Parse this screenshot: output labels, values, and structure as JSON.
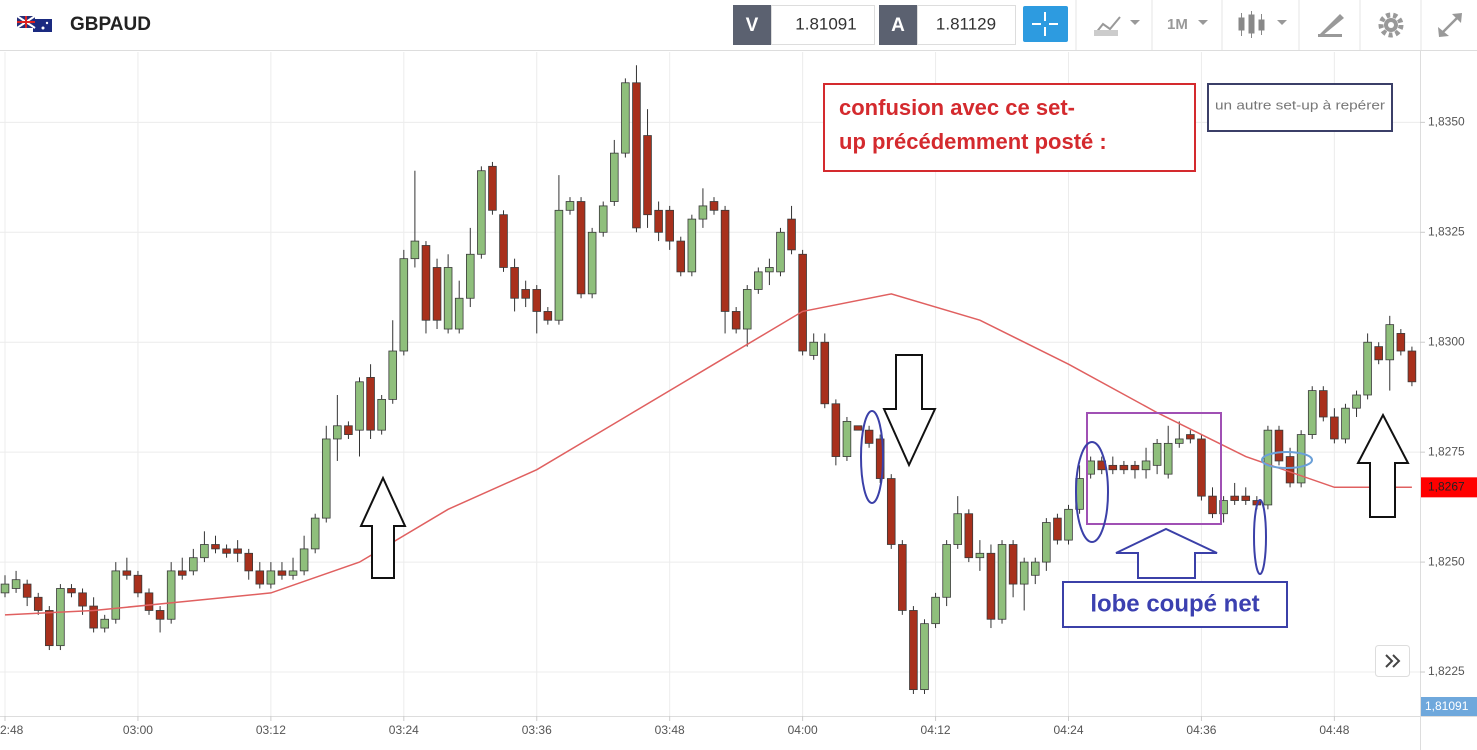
{
  "toolbar": {
    "symbol": "GBPAUD",
    "bid_label": "V",
    "bid": "1.81091",
    "ask_label": "A",
    "ask": "1.81129",
    "timeframe": "1M"
  },
  "chart_data": {
    "type": "candlestick",
    "x": [
      "02:48",
      "02:49",
      "02:50",
      "02:51",
      "02:52",
      "02:53",
      "02:54",
      "02:55",
      "02:56",
      "02:57",
      "02:58",
      "02:59",
      "03:00",
      "03:01",
      "03:02",
      "03:03",
      "03:04",
      "03:05",
      "03:06",
      "03:07",
      "03:08",
      "03:09",
      "03:10",
      "03:11",
      "03:12",
      "03:13",
      "03:14",
      "03:15",
      "03:16",
      "03:17",
      "03:18",
      "03:19",
      "03:20",
      "03:21",
      "03:22",
      "03:23",
      "03:24",
      "03:25",
      "03:26",
      "03:27",
      "03:28",
      "03:29",
      "03:30",
      "03:31",
      "03:32",
      "03:33",
      "03:34",
      "03:35",
      "03:36",
      "03:37",
      "03:38",
      "03:39",
      "03:40",
      "03:41",
      "03:42",
      "03:43",
      "03:44",
      "03:45",
      "03:46",
      "03:47",
      "03:48",
      "03:49",
      "03:50",
      "03:51",
      "03:52",
      "03:53",
      "03:54",
      "03:55",
      "03:56",
      "03:57",
      "03:58",
      "03:59",
      "04:00",
      "04:01",
      "04:02",
      "04:03",
      "04:04",
      "04:05",
      "04:06",
      "04:07",
      "04:08",
      "04:09",
      "04:10",
      "04:11",
      "04:12",
      "04:13",
      "04:14",
      "04:15",
      "04:16",
      "04:17",
      "04:18",
      "04:19",
      "04:20",
      "04:21",
      "04:22",
      "04:23",
      "04:24",
      "04:25",
      "04:26",
      "04:27",
      "04:28",
      "04:29",
      "04:30",
      "04:31",
      "04:32",
      "04:33",
      "04:34",
      "04:35",
      "04:36",
      "04:37",
      "04:38",
      "04:39",
      "04:40",
      "04:41",
      "04:42",
      "04:43",
      "04:44",
      "04:45",
      "04:46",
      "04:47",
      "04:48",
      "04:49",
      "04:50",
      "04:51",
      "04:52",
      "04:53",
      "04:54",
      "04:55"
    ],
    "open": [
      1.8243,
      1.8244,
      1.8245,
      1.8242,
      1.8239,
      1.8231,
      1.8244,
      1.8243,
      1.824,
      1.8235,
      1.8237,
      1.8248,
      1.8247,
      1.8243,
      1.8239,
      1.8237,
      1.8248,
      1.8248,
      1.8251,
      1.8254,
      1.8253,
      1.8253,
      1.8252,
      1.8248,
      1.8245,
      1.8248,
      1.8247,
      1.8248,
      1.8253,
      1.826,
      1.8278,
      1.8281,
      1.828,
      1.8292,
      1.828,
      1.8287,
      1.8298,
      1.8319,
      1.8322,
      1.8317,
      1.8303,
      1.8303,
      1.831,
      1.832,
      1.834,
      1.8329,
      1.8317,
      1.8312,
      1.8312,
      1.8307,
      1.8305,
      1.833,
      1.8332,
      1.8311,
      1.8325,
      1.8332,
      1.8343,
      1.8359,
      1.8347,
      1.833,
      1.833,
      1.8323,
      1.8316,
      1.8328,
      1.8332,
      1.833,
      1.8307,
      1.8303,
      1.8312,
      1.8316,
      1.8316,
      1.8328,
      1.832,
      1.8297,
      1.83,
      1.8286,
      1.8274,
      1.8281,
      1.828,
      1.8278,
      1.8269,
      1.8254,
      1.8239,
      1.8221,
      1.8236,
      1.8242,
      1.8254,
      1.8261,
      1.8251,
      1.8252,
      1.8237,
      1.8254,
      1.8245,
      1.8247,
      1.825,
      1.826,
      1.8255,
      1.8262,
      1.827,
      1.8273,
      1.8272,
      1.8272,
      1.8272,
      1.8271,
      1.8272,
      1.827,
      1.8277,
      1.8279,
      1.8278,
      1.8265,
      1.8261,
      1.8265,
      1.8265,
      1.8264,
      1.8263,
      1.828,
      1.8274,
      1.8268,
      1.8279,
      1.8289,
      1.8283,
      1.8278,
      1.8285,
      1.8288,
      1.8299,
      1.8296,
      1.8302,
      1.8298
    ],
    "high": [
      1.8247,
      1.8248,
      1.8246,
      1.8243,
      1.824,
      1.8245,
      1.8245,
      1.8244,
      1.8242,
      1.8238,
      1.825,
      1.8251,
      1.8248,
      1.8244,
      1.824,
      1.825,
      1.8251,
      1.8253,
      1.8257,
      1.8256,
      1.8254,
      1.8255,
      1.8253,
      1.825,
      1.825,
      1.825,
      1.8251,
      1.8256,
      1.8261,
      1.8281,
      1.8288,
      1.8282,
      1.8292,
      1.8295,
      1.8288,
      1.8305,
      1.8321,
      1.8339,
      1.8323,
      1.8319,
      1.832,
      1.8314,
      1.8326,
      1.834,
      1.8341,
      1.833,
      1.8319,
      1.8314,
      1.8313,
      1.8308,
      1.8338,
      1.8333,
      1.8333,
      1.8326,
      1.8332,
      1.8346,
      1.836,
      1.8363,
      1.8353,
      1.8332,
      1.8331,
      1.8324,
      1.8329,
      1.8335,
      1.8333,
      1.8331,
      1.8308,
      1.8313,
      1.8317,
      1.8319,
      1.8326,
      1.8331,
      1.8321,
      1.8302,
      1.8302,
      1.8287,
      1.8283,
      1.8281,
      1.8281,
      1.8279,
      1.827,
      1.8255,
      1.824,
      1.8237,
      1.8243,
      1.8255,
      1.8265,
      1.8262,
      1.8255,
      1.8254,
      1.8255,
      1.8255,
      1.8251,
      1.8251,
      1.826,
      1.8261,
      1.8263,
      1.8272,
      1.8274,
      1.8274,
      1.8274,
      1.8273,
      1.8273,
      1.8276,
      1.8278,
      1.8281,
      1.8282,
      1.828,
      1.8279,
      1.8267,
      1.8265,
      1.8268,
      1.8267,
      1.8265,
      1.8281,
      1.8281,
      1.8276,
      1.828,
      1.829,
      1.829,
      1.8285,
      1.8286,
      1.8289,
      1.8302,
      1.83,
      1.8306,
      1.8303,
      1.8299
    ],
    "low": [
      1.8242,
      1.8243,
      1.824,
      1.8238,
      1.823,
      1.823,
      1.8242,
      1.8238,
      1.8234,
      1.8234,
      1.8236,
      1.8246,
      1.8242,
      1.8238,
      1.8234,
      1.8236,
      1.8246,
      1.8247,
      1.825,
      1.8252,
      1.8251,
      1.825,
      1.8246,
      1.8244,
      1.8244,
      1.8246,
      1.8246,
      1.8247,
      1.8252,
      1.8259,
      1.8273,
      1.8278,
      1.8274,
      1.8278,
      1.8279,
      1.8286,
      1.8297,
      1.8317,
      1.8302,
      1.8303,
      1.8302,
      1.8302,
      1.8308,
      1.8319,
      1.8329,
      1.8316,
      1.8307,
      1.8308,
      1.8302,
      1.8304,
      1.8304,
      1.8329,
      1.831,
      1.831,
      1.8324,
      1.8331,
      1.8342,
      1.8325,
      1.8326,
      1.8323,
      1.8321,
      1.8315,
      1.8315,
      1.8326,
      1.8329,
      1.8302,
      1.8302,
      1.8299,
      1.8311,
      1.8313,
      1.8315,
      1.832,
      1.8297,
      1.8296,
      1.8285,
      1.8272,
      1.8273,
      1.828,
      1.8276,
      1.8268,
      1.8253,
      1.8238,
      1.822,
      1.822,
      1.8235,
      1.824,
      1.8253,
      1.825,
      1.8248,
      1.8235,
      1.8236,
      1.8242,
      1.8239,
      1.8245,
      1.8248,
      1.8254,
      1.8254,
      1.8261,
      1.8269,
      1.827,
      1.827,
      1.827,
      1.8269,
      1.8269,
      1.827,
      1.8269,
      1.8276,
      1.8277,
      1.8264,
      1.826,
      1.8259,
      1.8263,
      1.8263,
      1.8262,
      1.8262,
      1.8272,
      1.8267,
      1.8267,
      1.8278,
      1.8282,
      1.8277,
      1.8277,
      1.8283,
      1.8287,
      1.8295,
      1.8289,
      1.8297,
      1.829
    ],
    "close": [
      1.8245,
      1.8246,
      1.8242,
      1.8239,
      1.8231,
      1.8244,
      1.8243,
      1.824,
      1.8235,
      1.8237,
      1.8248,
      1.8247,
      1.8243,
      1.8239,
      1.8237,
      1.8248,
      1.8247,
      1.8251,
      1.8254,
      1.8253,
      1.8252,
      1.8252,
      1.8248,
      1.8245,
      1.8248,
      1.8247,
      1.8248,
      1.8253,
      1.826,
      1.8278,
      1.8281,
      1.8279,
      1.8291,
      1.828,
      1.8287,
      1.8298,
      1.8319,
      1.8323,
      1.8305,
      1.8305,
      1.8317,
      1.831,
      1.832,
      1.8339,
      1.833,
      1.8317,
      1.831,
      1.831,
      1.8307,
      1.8305,
      1.833,
      1.8332,
      1.8311,
      1.8325,
      1.8331,
      1.8343,
      1.8359,
      1.8326,
      1.8329,
      1.8325,
      1.8323,
      1.8316,
      1.8328,
      1.8331,
      1.833,
      1.8307,
      1.8303,
      1.8312,
      1.8316,
      1.8317,
      1.8325,
      1.8321,
      1.8298,
      1.83,
      1.8286,
      1.8274,
      1.8282,
      1.828,
      1.8277,
      1.8269,
      1.8254,
      1.8239,
      1.8221,
      1.8236,
      1.8242,
      1.8254,
      1.8261,
      1.8251,
      1.8252,
      1.8237,
      1.8254,
      1.8245,
      1.825,
      1.825,
      1.8259,
      1.8255,
      1.8262,
      1.8269,
      1.8273,
      1.8271,
      1.8271,
      1.8271,
      1.8271,
      1.8273,
      1.8277,
      1.8277,
      1.8278,
      1.8278,
      1.8265,
      1.8261,
      1.8264,
      1.8264,
      1.8264,
      1.8263,
      1.828,
      1.8273,
      1.8268,
      1.8279,
      1.8289,
      1.8283,
      1.8278,
      1.8285,
      1.8288,
      1.83,
      1.8296,
      1.8304,
      1.8298,
      1.8291
    ],
    "up_color": "#8fbf7c",
    "down_color": "#a8301c",
    "moving_average": {
      "color": "#e06060",
      "x": [
        "02:48",
        "02:56",
        "03:04",
        "03:12",
        "03:20",
        "03:28",
        "03:36",
        "03:44",
        "03:52",
        "04:00",
        "04:08",
        "04:16",
        "04:24",
        "04:32",
        "04:40",
        "04:48",
        "04:55"
      ],
      "values": [
        1.8238,
        1.8239,
        1.8241,
        1.8243,
        1.825,
        1.8262,
        1.8271,
        1.8283,
        1.8295,
        1.8307,
        1.8311,
        1.8305,
        1.8295,
        1.8284,
        1.8274,
        1.8267,
        1.8267
      ]
    },
    "last_value": {
      "value": 1.8267,
      "label": "1,8267"
    },
    "bid_badge": "1,81091",
    "xlim": [
      "02:48",
      "04:56"
    ],
    "xticks": [
      {
        "value": "02:48",
        "label": "2:48"
      },
      "03:00",
      "03:12",
      "03:24",
      "03:36",
      "03:48",
      "04:00",
      "04:12",
      "04:24",
      "04:36",
      "04:48"
    ],
    "ylim": [
      1.8215,
      1.8366
    ],
    "yticks": [
      {
        "value": 1.8225,
        "label": "1,8225"
      },
      {
        "value": 1.825,
        "label": "1,8250"
      },
      {
        "value": 1.8275,
        "label": "1,8275"
      },
      {
        "value": 1.83,
        "label": "1,8300"
      },
      {
        "value": 1.8325,
        "label": "1,8325"
      },
      {
        "value": 1.835,
        "label": "1,8350"
      }
    ],
    "grid": true
  },
  "annotations": {
    "confusion": [
      "confusion avec ce set-",
      "up précédemment posté :"
    ],
    "setup": "un autre set-up à repérer",
    "lobe": "lobe coupé net"
  }
}
